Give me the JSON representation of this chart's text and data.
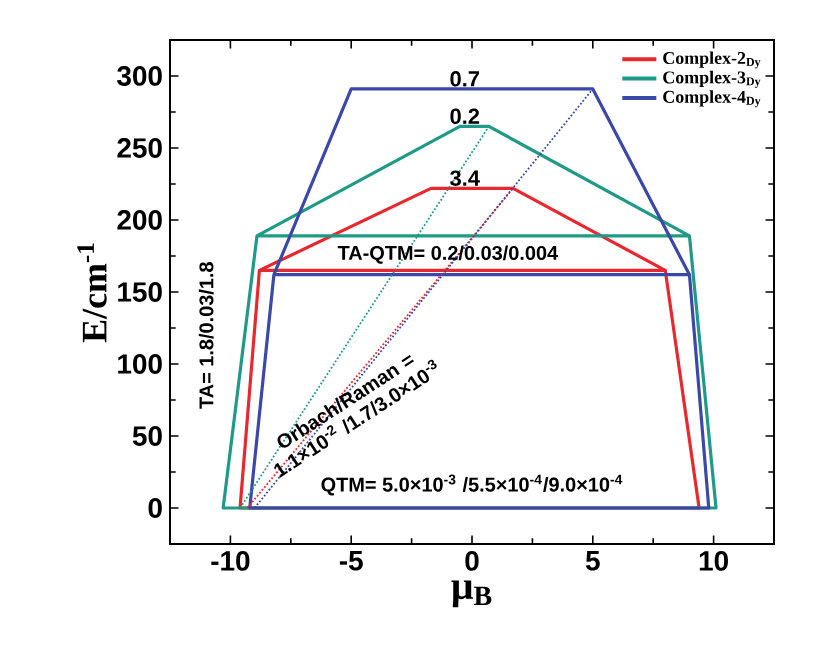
{
  "chart_data": {
    "type": "line",
    "xlabel": "μ$_{B}$",
    "ylabel": "E/cm$^{-1}$",
    "xlim": [
      -12.5,
      12.5
    ],
    "ylim": [
      -25,
      325
    ],
    "xticks": [
      -10,
      -5,
      0,
      5,
      10
    ],
    "yticks": [
      0,
      50,
      100,
      150,
      200,
      250,
      300
    ],
    "legend": "top right",
    "marker": "none",
    "line_style": "solid",
    "series": [
      {
        "name": "Complex-2$_{Dy}$",
        "color": "#e8282e",
        "x": [
          8.0,
          9.4,
          -9.6,
          -8.8,
          8.0,
          1.7,
          -1.7,
          -8.8
        ],
        "values": [
          165,
          0,
          0,
          165,
          165,
          222,
          222,
          165
        ]
      },
      {
        "name": "Complex-3$_{Dy}$",
        "color": "#1f9a86",
        "x": [
          9.0,
          10.1,
          -10.3,
          -8.9,
          9.0,
          0.7,
          -0.5,
          -8.9
        ],
        "values": [
          189,
          0,
          0,
          189,
          189,
          265,
          265,
          189
        ]
      },
      {
        "name": "Complex-4$_{Dy}$",
        "color": "#3a48a8",
        "x": [
          9.0,
          9.8,
          -9.2,
          -8.2,
          9.0,
          5.0,
          -5.0,
          -8.2
        ],
        "values": [
          162,
          0,
          0,
          162,
          162,
          291,
          291,
          162
        ]
      },
      {
        "color": "#e8282e",
        "line_style": "dotted",
        "x": [
          -9.3,
          1.7
        ],
        "values": [
          0,
          222
        ]
      },
      {
        "color": "#1f9a86",
        "line_style": "dotted",
        "x": [
          -9.6,
          0.7
        ],
        "values": [
          0,
          265
        ]
      },
      {
        "color": "#3a48a8",
        "line_style": "dotted",
        "x": [
          -9.0,
          5.0
        ],
        "values": [
          0,
          291
        ]
      }
    ],
    "annotations": [
      {
        "text": "0.7",
        "y": 291
      },
      {
        "text": "0.2",
        "y": 265
      },
      {
        "text": "3.4",
        "y": 222
      },
      "TA-QTM= 0.2/0.03/0.004",
      "Orbach/Raman = 1.1×10$^{-2}$ /1.7/3.0×10$^{-3}$",
      "TA= 1.8/0.03/1.8",
      "QTM= 5.0×10$^{-3}$ /5.5×10$^{-4}$/9.0×10$^{-4}$"
    ]
  }
}
